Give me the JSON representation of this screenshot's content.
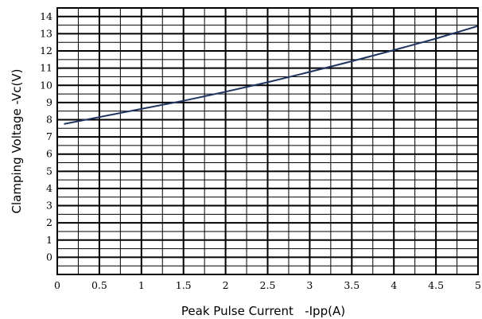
{
  "chart_data": {
    "type": "line",
    "title": "",
    "xlabel": "Peak Pulse Current   -Ipp(A)",
    "ylabel": "Clamping Voltage -Vc(V)",
    "xlim": [
      0,
      5
    ],
    "ylim": [
      -1,
      14.5
    ],
    "x_ticks": [
      "0",
      "0.5",
      "1",
      "1.5",
      "2",
      "2.5",
      "3",
      "3.5",
      "4",
      "4.5",
      "5"
    ],
    "y_ticks": [
      "0",
      "1",
      "2",
      "3",
      "4",
      "5",
      "6",
      "7",
      "8",
      "9",
      "10",
      "11",
      "12",
      "13",
      "14"
    ],
    "grid": true,
    "legend": "none",
    "series": [
      {
        "color": "#1f3560",
        "x": [
          0.08,
          0.5,
          1.0,
          1.5,
          2.0,
          2.5,
          3.0,
          3.5,
          4.0,
          4.5,
          5.0
        ],
        "y": [
          7.75,
          8.15,
          8.63,
          9.1,
          9.63,
          10.18,
          10.78,
          11.4,
          12.05,
          12.72,
          13.45
        ]
      }
    ]
  }
}
